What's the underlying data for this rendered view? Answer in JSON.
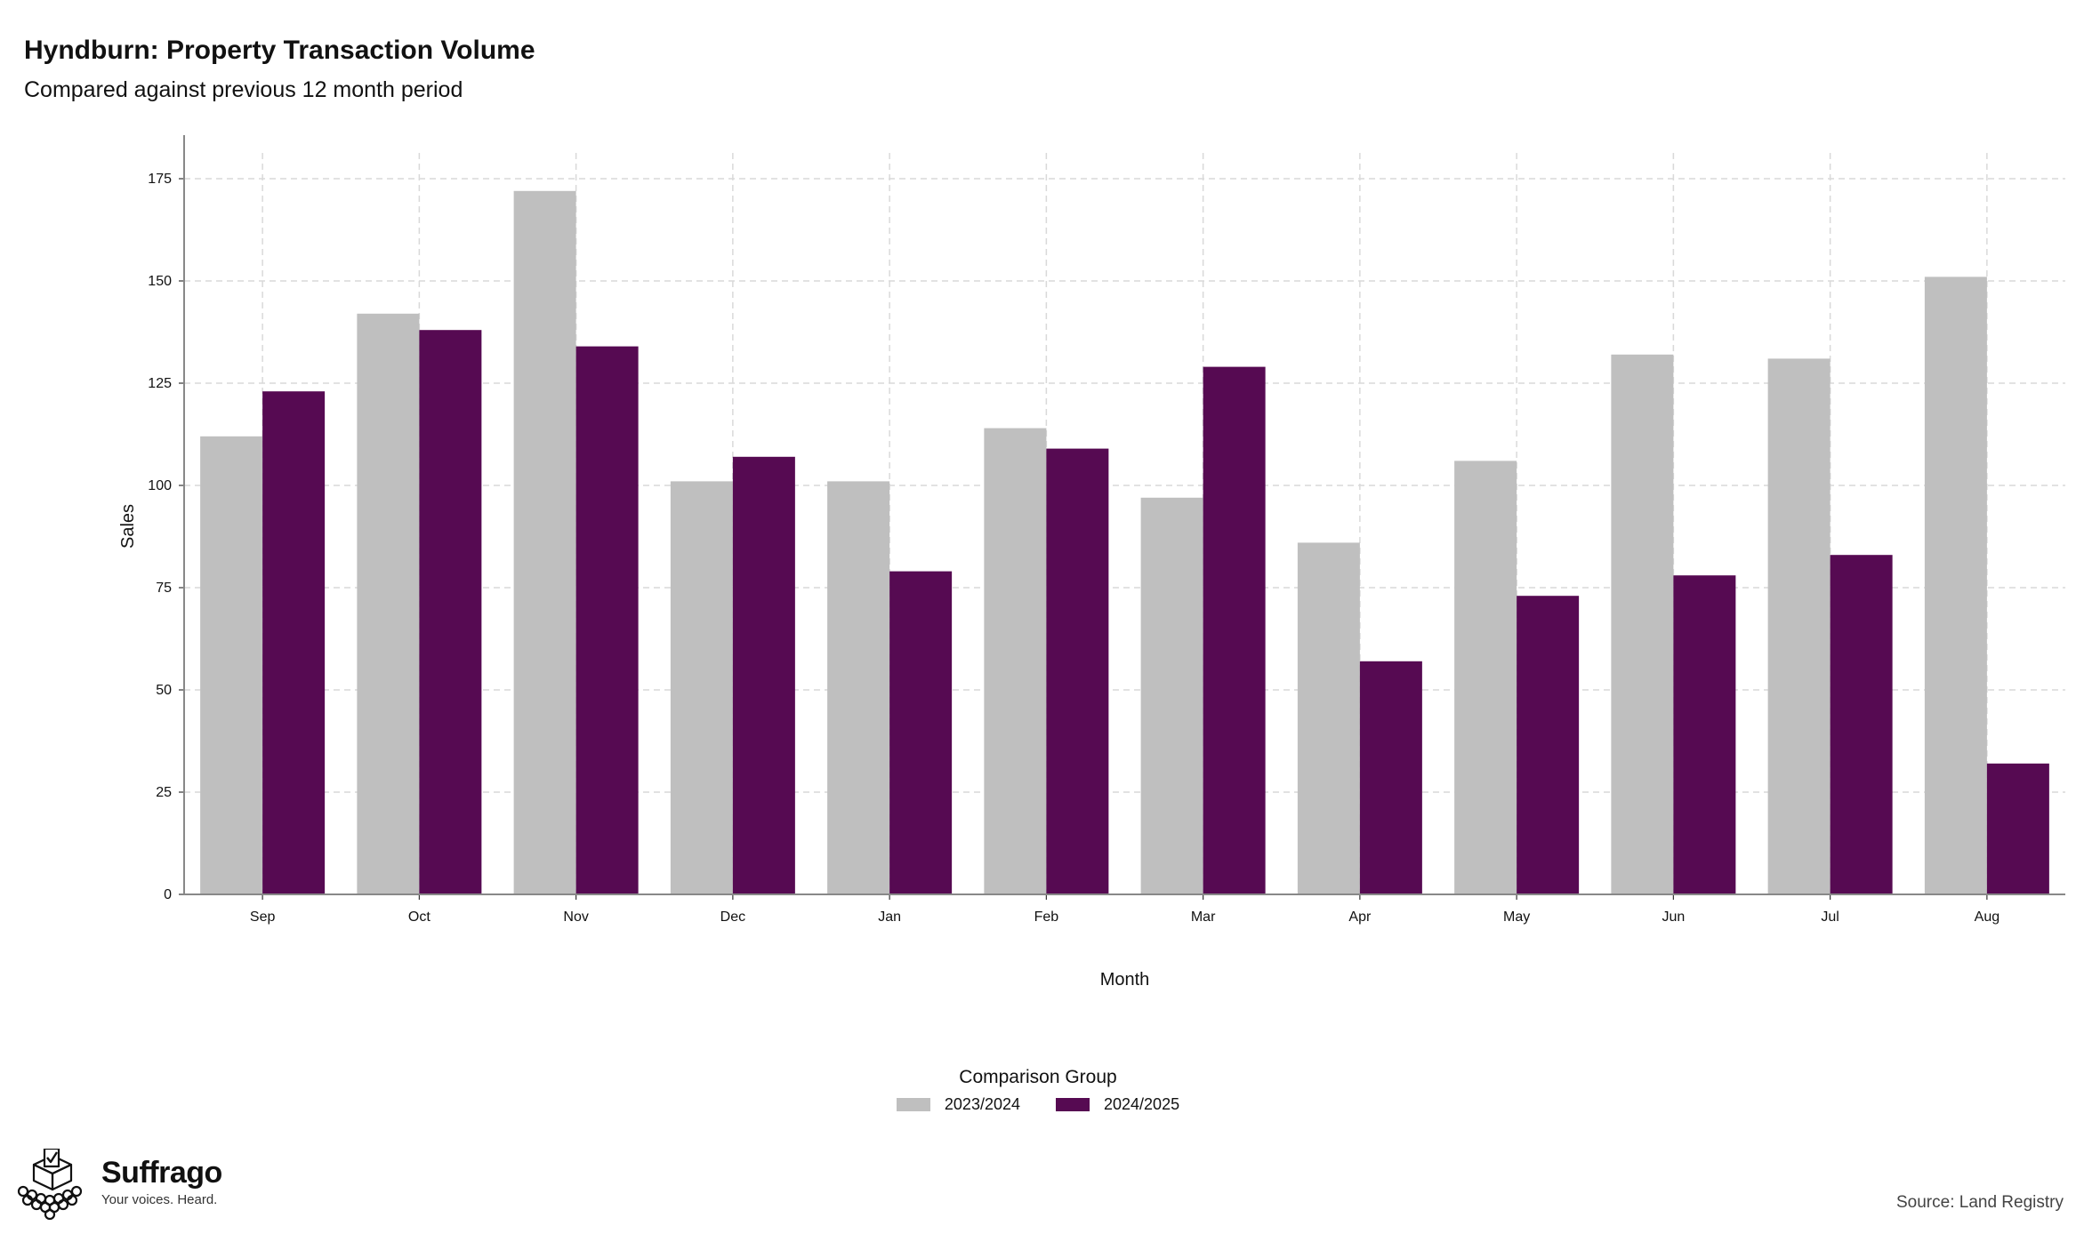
{
  "header": {
    "title": "Hyndburn: Property Transaction Volume",
    "subtitle": "Compared against previous 12 month period"
  },
  "chart_data": {
    "type": "bar",
    "categories": [
      "Sep",
      "Oct",
      "Nov",
      "Dec",
      "Jan",
      "Feb",
      "Mar",
      "Apr",
      "May",
      "Jun",
      "Jul",
      "Aug"
    ],
    "series": [
      {
        "name": "2023/2024",
        "color": "#bfbfbf",
        "values": [
          112,
          142,
          172,
          101,
          101,
          114,
          97,
          86,
          106,
          132,
          131,
          151
        ]
      },
      {
        "name": "2024/2025",
        "color": "#560a52",
        "values": [
          123,
          138,
          134,
          107,
          79,
          109,
          129,
          57,
          73,
          78,
          83,
          32
        ]
      }
    ],
    "xlabel": "Month",
    "ylabel": "Sales",
    "ylim": [
      0,
      180
    ],
    "yticks": [
      0,
      25,
      50,
      75,
      100,
      125,
      150,
      175
    ],
    "grid": true,
    "legend_title": "Comparison Group",
    "legend_position": "bottom"
  },
  "branding": {
    "logo_name": "Suffrago",
    "logo_tagline": "Your voices. Heard.",
    "logo_icon": "ballot-box-icon"
  },
  "source": "Source: Land Registry"
}
